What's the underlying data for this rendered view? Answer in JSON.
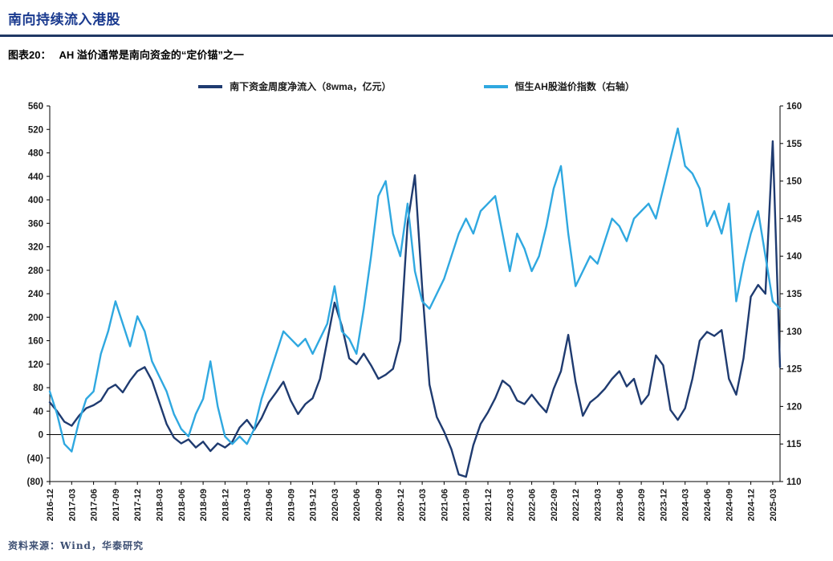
{
  "page": {
    "title": "南向持续流入港股",
    "caption_label": "图表20：",
    "caption_text": "AH 溢价通常是南向资金的“定价锚”之一",
    "source": "资料来源：Wind，华泰研究"
  },
  "colors": {
    "title": "#1a3a8f",
    "rule": "#1f3864",
    "navy_series": "#1f3b70",
    "lightblue_series": "#2fa8e0",
    "axis": "#000000",
    "tick_text": "#1a1a1a",
    "source_text": "#3d4f73"
  },
  "chart_data": {
    "type": "line",
    "title": "",
    "legend_position": "top",
    "grid": false,
    "xlabel": "",
    "ylabel_left": "",
    "ylabel_right": "",
    "x_label_every_months": 3,
    "months_total": 101,
    "x_labels": [
      "2016-12",
      "2017-03",
      "2017-06",
      "2017-09",
      "2017-12",
      "2018-03",
      "2018-06",
      "2018-09",
      "2018-12",
      "2019-03",
      "2019-06",
      "2019-09",
      "2019-12",
      "2020-03",
      "2020-06",
      "2020-09",
      "2020-12",
      "2021-03",
      "2021-06",
      "2021-09",
      "2021-12",
      "2022-03",
      "2022-06",
      "2022-09",
      "2022-12",
      "2023-03",
      "2023-06",
      "2023-09",
      "2023-12",
      "2024-03",
      "2024-06",
      "2024-09",
      "2024-12",
      "2025-03"
    ],
    "left_axis": {
      "min": -80,
      "max": 560,
      "step": 40,
      "negative_parentheses": true
    },
    "right_axis": {
      "min": 110,
      "max": 160,
      "step": 5
    },
    "series": [
      {
        "name": "南下资金周度净流入（8wma，亿元）",
        "axis": "left",
        "color": "#1f3b70",
        "values": [
          55,
          40,
          22,
          15,
          32,
          45,
          50,
          58,
          78,
          85,
          72,
          92,
          108,
          115,
          92,
          55,
          18,
          -5,
          -15,
          -8,
          -22,
          -12,
          -28,
          -15,
          -22,
          -12,
          12,
          25,
          8,
          28,
          55,
          72,
          90,
          58,
          35,
          52,
          62,
          95,
          160,
          225,
          185,
          130,
          120,
          138,
          118,
          95,
          102,
          112,
          160,
          360,
          442,
          250,
          85,
          30,
          5,
          -25,
          -68,
          -72,
          -18,
          18,
          38,
          62,
          92,
          82,
          58,
          52,
          68,
          52,
          38,
          78,
          108,
          170,
          90,
          32,
          55,
          65,
          78,
          95,
          108,
          82,
          95,
          52,
          68,
          135,
          118,
          42,
          25,
          45,
          95,
          160,
          175,
          168,
          178,
          95,
          68,
          130,
          235,
          255,
          240,
          500,
          115
        ]
      },
      {
        "name": "恒生AH股溢价指数（右轴）",
        "axis": "right",
        "color": "#2fa8e0",
        "values": [
          122,
          119,
          115,
          114,
          118,
          121,
          122,
          127,
          130,
          134,
          131,
          128,
          132,
          130,
          126,
          124,
          122,
          119,
          117,
          116,
          119,
          121,
          126,
          120,
          116,
          115,
          116,
          115,
          117,
          121,
          124,
          127,
          130,
          129,
          128,
          129,
          127,
          129,
          131,
          136,
          130,
          129,
          127,
          133,
          140,
          148,
          150,
          143,
          140,
          147,
          138,
          134,
          133,
          135,
          137,
          140,
          143,
          145,
          143,
          146,
          147,
          148,
          143,
          138,
          143,
          141,
          138,
          140,
          144,
          149,
          152,
          143,
          136,
          138,
          140,
          139,
          142,
          145,
          144,
          142,
          145,
          146,
          147,
          145,
          149,
          153,
          157,
          152,
          151,
          149,
          144,
          146,
          143,
          147,
          134,
          139,
          143,
          146,
          140,
          134,
          133
        ]
      }
    ]
  }
}
